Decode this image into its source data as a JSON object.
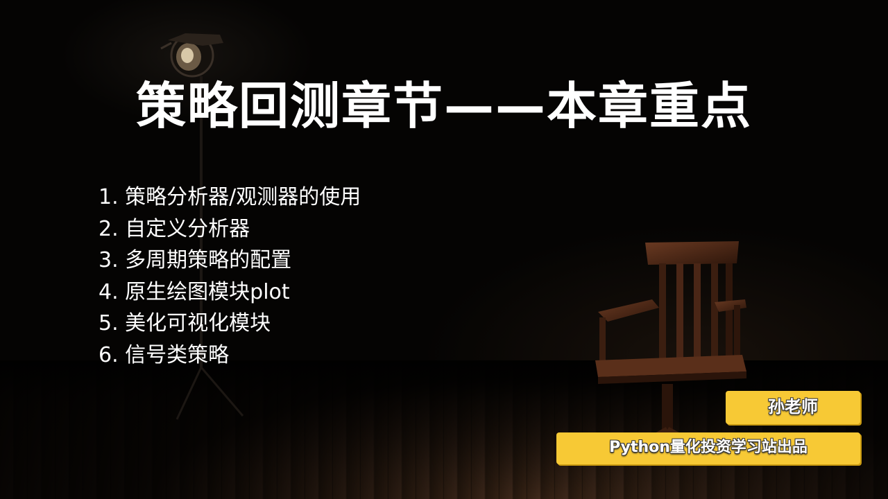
{
  "slide": {
    "title": "策略回测章节——本章重点",
    "points": [
      "1. 策略分析器/观测器的使用",
      "2. 自定义分析器",
      "3. 多周期策略的配置",
      "4. 原生绘图模块plot",
      "5. 美化可视化模块",
      "6. 信号类策略"
    ],
    "teacher_badge": "孙老师",
    "producer_badge": "Python量化投资学习站出品"
  },
  "colors": {
    "background": "#050403",
    "text": "#ffffff",
    "badge": "#f7c935"
  },
  "icons": {
    "lamp": "spotlight-lamp-icon",
    "chair": "wooden-chair-icon"
  }
}
